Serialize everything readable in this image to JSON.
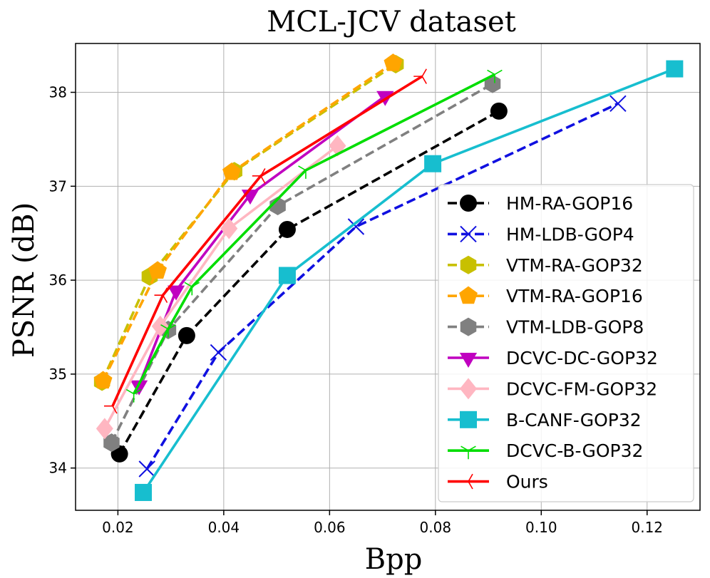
{
  "chart_data": {
    "type": "line",
    "title": "MCL-JCV dataset",
    "xlabel": "Bpp",
    "ylabel": "PSNR (dB)",
    "xlim": [
      0.012,
      0.13
    ],
    "ylim": [
      33.55,
      38.52
    ],
    "xticks": [
      0.02,
      0.04,
      0.06,
      0.08,
      0.1,
      0.12
    ],
    "xtick_labels": [
      "0.02",
      "0.04",
      "0.06",
      "0.08",
      "0.10",
      "0.12"
    ],
    "yticks": [
      34,
      35,
      36,
      37,
      38
    ],
    "ytick_labels": [
      "34",
      "35",
      "36",
      "37",
      "38"
    ],
    "grid": true,
    "legend_position": "lower-right",
    "series": [
      {
        "name": "HM-RA-GOP16",
        "color": "#000000",
        "dash": "dashed",
        "marker": "circle",
        "x": [
          0.0203,
          0.033,
          0.052,
          0.092
        ],
        "y": [
          34.15,
          35.41,
          36.54,
          37.8
        ]
      },
      {
        "name": "HM-LDB-GOP4",
        "color": "#1010e0",
        "dash": "dashed",
        "marker": "x",
        "x": [
          0.0255,
          0.039,
          0.065,
          0.1145
        ],
        "y": [
          33.99,
          35.23,
          36.57,
          37.88
        ]
      },
      {
        "name": "VTM-RA-GOP32",
        "color": "#c8c000",
        "dash": "dashed",
        "marker": "hexagon",
        "x": [
          0.017,
          0.026,
          0.042,
          0.0725
        ],
        "y": [
          34.92,
          36.04,
          37.16,
          38.3
        ]
      },
      {
        "name": "VTM-RA-GOP16",
        "color": "#ffa500",
        "dash": "dashed",
        "marker": "pentagon",
        "x": [
          0.0172,
          0.0275,
          0.0415,
          0.072
        ],
        "y": [
          34.93,
          36.1,
          37.15,
          38.31
        ]
      },
      {
        "name": "VTM-LDB-GOP8",
        "color": "#808080",
        "dash": "dashed",
        "marker": "hexagon",
        "x": [
          0.0188,
          0.0295,
          0.0502,
          0.0908
        ],
        "y": [
          34.27,
          35.47,
          36.79,
          38.09
        ]
      },
      {
        "name": "DCVC-DC-GOP32",
        "color": "#c000c0",
        "dash": "solid",
        "marker": "triangle-down",
        "x": [
          0.024,
          0.031,
          0.045,
          0.0705
        ],
        "y": [
          34.88,
          35.89,
          36.91,
          37.96
        ]
      },
      {
        "name": "DCVC-FM-GOP32",
        "color": "#ffb6c1",
        "dash": "solid",
        "marker": "diamond",
        "x": [
          0.0175,
          0.028,
          0.041,
          0.0615
        ],
        "y": [
          34.42,
          35.51,
          36.55,
          37.43
        ]
      },
      {
        "name": "B-CANF-GOP32",
        "color": "#17becf",
        "dash": "solid",
        "marker": "square",
        "x": [
          0.0248,
          0.052,
          0.0795,
          0.1252
        ],
        "y": [
          33.74,
          36.05,
          37.24,
          38.25
        ]
      },
      {
        "name": "DCVC-B-GOP32",
        "color": "#00dd00",
        "dash": "solid",
        "marker": "tri-down",
        "x": [
          0.023,
          0.0295,
          0.034,
          0.0555,
          0.0912
        ],
        "y": [
          34.79,
          35.48,
          35.93,
          37.17,
          38.19
        ]
      },
      {
        "name": "Ours",
        "color": "#ff0000",
        "dash": "solid",
        "marker": "tri-left",
        "x": [
          0.019,
          0.0285,
          0.047,
          0.0775
        ],
        "y": [
          34.66,
          35.84,
          37.11,
          38.17
        ]
      }
    ]
  }
}
